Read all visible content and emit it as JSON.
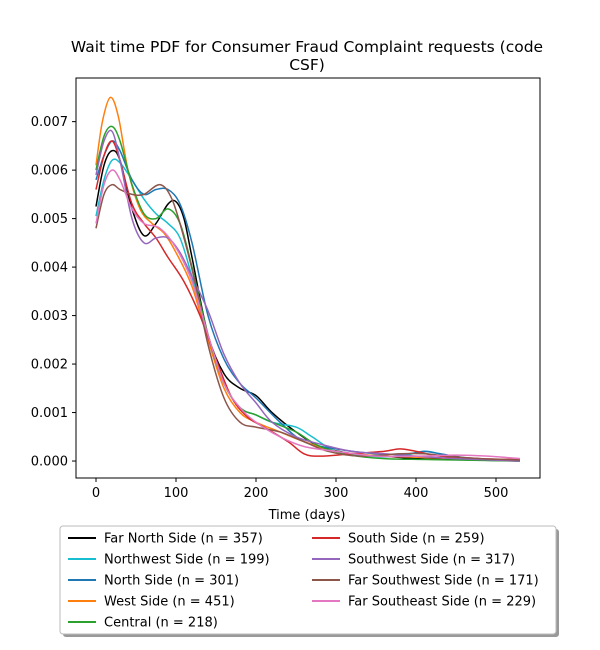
{
  "chart_data": {
    "type": "line",
    "title_line1": "Wait time PDF for Consumer Fraud Complaint  requests (code",
    "title_line2": "CSF)",
    "xlabel": "Time (days)",
    "ylabel": "",
    "xlim": [
      -25,
      555
    ],
    "ylim": [
      -0.00035,
      0.0079
    ],
    "xticks": [
      0,
      100,
      200,
      300,
      400,
      500
    ],
    "yticks": [
      0.0,
      0.001,
      0.002,
      0.003,
      0.004,
      0.005,
      0.006,
      0.007
    ],
    "ytick_labels": [
      "0.000",
      "0.001",
      "0.002",
      "0.003",
      "0.004",
      "0.005",
      "0.006",
      "0.007"
    ],
    "grid": false,
    "legend_position": "below-plot, two columns",
    "series": [
      {
        "name": "Far North Side (n = 357)",
        "color": "#000000",
        "points": [
          [
            0,
            0.00525
          ],
          [
            10,
            0.0061
          ],
          [
            20,
            0.0064
          ],
          [
            30,
            0.0062
          ],
          [
            45,
            0.0052
          ],
          [
            60,
            0.00465
          ],
          [
            75,
            0.0049
          ],
          [
            90,
            0.0053
          ],
          [
            100,
            0.00535
          ],
          [
            110,
            0.005
          ],
          [
            120,
            0.0042
          ],
          [
            140,
            0.0026
          ],
          [
            160,
            0.0018
          ],
          [
            180,
            0.0015
          ],
          [
            200,
            0.00135
          ],
          [
            220,
            0.001
          ],
          [
            250,
            0.0006
          ],
          [
            280,
            0.0003
          ],
          [
            320,
            0.00015
          ],
          [
            360,
            0.0001
          ],
          [
            400,
            5e-05
          ],
          [
            450,
            3e-05
          ],
          [
            530,
            0.0
          ]
        ]
      },
      {
        "name": "Northwest Side (n = 199)",
        "color": "#17becf",
        "points": [
          [
            0,
            0.00505
          ],
          [
            10,
            0.0058
          ],
          [
            20,
            0.0062
          ],
          [
            30,
            0.00615
          ],
          [
            45,
            0.0058
          ],
          [
            60,
            0.0054
          ],
          [
            75,
            0.0051
          ],
          [
            90,
            0.0049
          ],
          [
            105,
            0.0046
          ],
          [
            120,
            0.0038
          ],
          [
            140,
            0.0026
          ],
          [
            160,
            0.0016
          ],
          [
            180,
            0.0011
          ],
          [
            200,
            0.00095
          ],
          [
            220,
            0.0008
          ],
          [
            250,
            0.0007
          ],
          [
            270,
            0.0005
          ],
          [
            300,
            0.0002
          ],
          [
            340,
            0.0001
          ],
          [
            380,
            0.0001
          ],
          [
            410,
            0.0002
          ],
          [
            430,
            0.00015
          ],
          [
            460,
            5e-05
          ],
          [
            530,
            0.0
          ]
        ]
      },
      {
        "name": "North Side (n = 301)",
        "color": "#1f77b4",
        "points": [
          [
            0,
            0.0058
          ],
          [
            10,
            0.0063
          ],
          [
            20,
            0.0066
          ],
          [
            30,
            0.0064
          ],
          [
            45,
            0.0058
          ],
          [
            60,
            0.0055
          ],
          [
            75,
            0.0056
          ],
          [
            90,
            0.0056
          ],
          [
            105,
            0.0053
          ],
          [
            120,
            0.0045
          ],
          [
            140,
            0.003
          ],
          [
            160,
            0.0021
          ],
          [
            180,
            0.0016
          ],
          [
            200,
            0.0013
          ],
          [
            230,
            0.0008
          ],
          [
            260,
            0.0004
          ],
          [
            300,
            0.00025
          ],
          [
            350,
            0.00015
          ],
          [
            390,
            0.00015
          ],
          [
            410,
            0.0002
          ],
          [
            430,
            0.00015
          ],
          [
            470,
            5e-05
          ],
          [
            530,
            0.0
          ]
        ]
      },
      {
        "name": "West Side (n = 451)",
        "color": "#ff7f0e",
        "points": [
          [
            0,
            0.0061
          ],
          [
            8,
            0.007
          ],
          [
            18,
            0.0075
          ],
          [
            28,
            0.0071
          ],
          [
            40,
            0.006
          ],
          [
            55,
            0.0052
          ],
          [
            70,
            0.0049
          ],
          [
            85,
            0.0047
          ],
          [
            100,
            0.0043
          ],
          [
            120,
            0.0036
          ],
          [
            140,
            0.0025
          ],
          [
            160,
            0.0015
          ],
          [
            180,
            0.001
          ],
          [
            200,
            0.0008
          ],
          [
            230,
            0.0006
          ],
          [
            260,
            0.0004
          ],
          [
            300,
            0.0002
          ],
          [
            360,
            0.0001
          ],
          [
            400,
            8e-05
          ],
          [
            450,
            5e-05
          ],
          [
            530,
            0.0
          ]
        ]
      },
      {
        "name": "Central (n = 218)",
        "color": "#2ca02c",
        "points": [
          [
            0,
            0.006
          ],
          [
            10,
            0.0067
          ],
          [
            20,
            0.0069
          ],
          [
            30,
            0.0066
          ],
          [
            45,
            0.0057
          ],
          [
            60,
            0.0051
          ],
          [
            75,
            0.005
          ],
          [
            90,
            0.0052
          ],
          [
            105,
            0.0049
          ],
          [
            120,
            0.004
          ],
          [
            140,
            0.0026
          ],
          [
            160,
            0.0016
          ],
          [
            180,
            0.0011
          ],
          [
            200,
            0.00095
          ],
          [
            220,
            0.0008
          ],
          [
            250,
            0.0006
          ],
          [
            280,
            0.0003
          ],
          [
            320,
            0.00012
          ],
          [
            360,
            5e-05
          ],
          [
            420,
            3e-05
          ],
          [
            530,
            0.0
          ]
        ]
      },
      {
        "name": "South Side (n = 259)",
        "color": "#d62728",
        "points": [
          [
            0,
            0.0056
          ],
          [
            10,
            0.0063
          ],
          [
            20,
            0.0066
          ],
          [
            30,
            0.0062
          ],
          [
            45,
            0.0053
          ],
          [
            60,
            0.0049
          ],
          [
            75,
            0.0046
          ],
          [
            90,
            0.0042
          ],
          [
            110,
            0.0037
          ],
          [
            130,
            0.003
          ],
          [
            150,
            0.0021
          ],
          [
            170,
            0.0013
          ],
          [
            190,
            0.0009
          ],
          [
            210,
            0.0007
          ],
          [
            240,
            0.0004
          ],
          [
            260,
            0.00015
          ],
          [
            280,
            0.0001
          ],
          [
            320,
            0.00015
          ],
          [
            360,
            0.0002
          ],
          [
            380,
            0.00025
          ],
          [
            400,
            0.0002
          ],
          [
            430,
            0.0001
          ],
          [
            480,
            5e-05
          ],
          [
            530,
            3e-05
          ]
        ]
      },
      {
        "name": "Southwest Side (n = 317)",
        "color": "#9467bd",
        "points": [
          [
            0,
            0.0059
          ],
          [
            10,
            0.0066
          ],
          [
            20,
            0.0068
          ],
          [
            30,
            0.0062
          ],
          [
            45,
            0.005
          ],
          [
            60,
            0.0045
          ],
          [
            75,
            0.0046
          ],
          [
            90,
            0.0046
          ],
          [
            105,
            0.0043
          ],
          [
            120,
            0.0038
          ],
          [
            140,
            0.0031
          ],
          [
            160,
            0.0022
          ],
          [
            180,
            0.0016
          ],
          [
            200,
            0.0012
          ],
          [
            220,
            0.0008
          ],
          [
            250,
            0.0005
          ],
          [
            280,
            0.00035
          ],
          [
            320,
            0.0002
          ],
          [
            360,
            0.00015
          ],
          [
            400,
            0.0001
          ],
          [
            450,
            5e-05
          ],
          [
            530,
            0.0
          ]
        ]
      },
      {
        "name": "Far Southwest Side (n = 171)",
        "color": "#8c564b",
        "points": [
          [
            0,
            0.0048
          ],
          [
            10,
            0.0055
          ],
          [
            20,
            0.0057
          ],
          [
            30,
            0.0056
          ],
          [
            45,
            0.0055
          ],
          [
            60,
            0.0055
          ],
          [
            80,
            0.0057
          ],
          [
            95,
            0.0054
          ],
          [
            110,
            0.0046
          ],
          [
            125,
            0.0036
          ],
          [
            140,
            0.0024
          ],
          [
            160,
            0.0013
          ],
          [
            180,
            0.0008
          ],
          [
            200,
            0.0007
          ],
          [
            230,
            0.0006
          ],
          [
            260,
            0.0004
          ],
          [
            290,
            0.0002
          ],
          [
            330,
            0.0001
          ],
          [
            380,
            0.00015
          ],
          [
            410,
            0.00015
          ],
          [
            440,
            0.0001
          ],
          [
            480,
            5e-05
          ],
          [
            530,
            2e-05
          ]
        ]
      },
      {
        "name": "Far Southeast Side (n = 229)",
        "color": "#e377c2",
        "points": [
          [
            0,
            0.0049
          ],
          [
            10,
            0.0057
          ],
          [
            20,
            0.006
          ],
          [
            30,
            0.0058
          ],
          [
            45,
            0.0052
          ],
          [
            60,
            0.0049
          ],
          [
            80,
            0.0048
          ],
          [
            100,
            0.0044
          ],
          [
            120,
            0.0037
          ],
          [
            140,
            0.0026
          ],
          [
            160,
            0.0016
          ],
          [
            180,
            0.0011
          ],
          [
            200,
            0.0008
          ],
          [
            230,
            0.0005
          ],
          [
            260,
            0.0003
          ],
          [
            300,
            0.0002
          ],
          [
            350,
            0.0001
          ],
          [
            400,
            0.0001
          ],
          [
            440,
            0.00012
          ],
          [
            460,
            0.00012
          ],
          [
            490,
            0.0001
          ],
          [
            530,
            5e-05
          ]
        ]
      }
    ]
  }
}
